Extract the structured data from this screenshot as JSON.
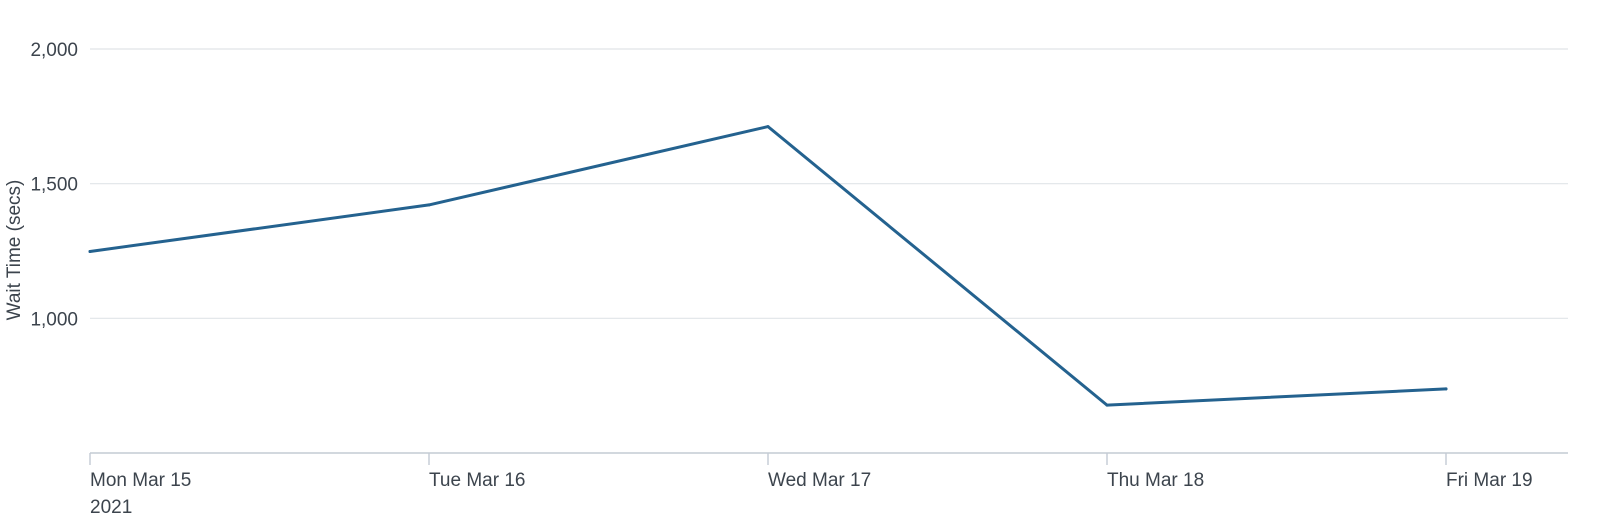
{
  "chart_data": {
    "type": "line",
    "title": "",
    "xlabel": "",
    "ylabel": "Wait Time (secs)",
    "x": [
      "2021-03-15",
      "2021-03-16",
      "2021-03-17",
      "2021-03-18",
      "2021-03-19"
    ],
    "x_tick_labels": [
      "Mon Mar 15",
      "Tue Mar 16",
      "Wed Mar 17",
      "Thu Mar 18",
      "Fri Mar 19"
    ],
    "x_tick_sublabels": [
      "2021",
      "",
      "",
      "",
      ""
    ],
    "series": [
      {
        "values": [
          1248,
          1421,
          1712,
          678,
          738
        ],
        "color": "#24628f"
      }
    ],
    "ylim": [
      500,
      2000
    ],
    "y_ticks": [
      1000,
      1500,
      2000
    ],
    "y_tick_labels": [
      "1,000",
      "1,500",
      "2,000"
    ],
    "grid": true,
    "legend": "none"
  }
}
